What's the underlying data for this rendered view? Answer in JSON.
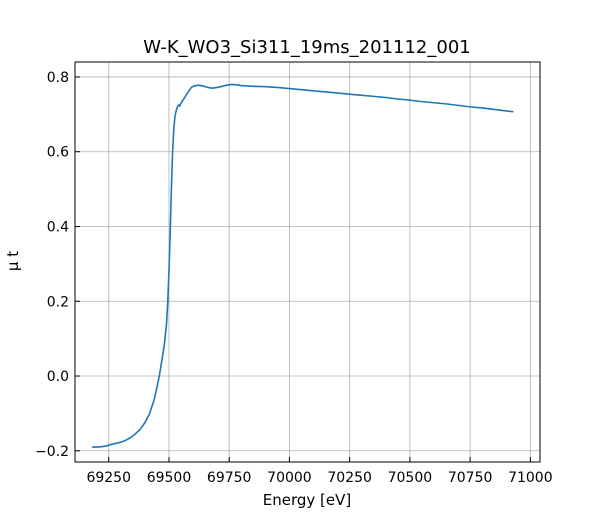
{
  "chart_data": {
    "type": "line",
    "title": "W-K_WO3_Si311_19ms_201112_001",
    "xlabel": "Energy [eV]",
    "ylabel": "μ t",
    "xlim": [
      69110,
      71040
    ],
    "ylim": [
      -0.23,
      0.84
    ],
    "xticks": [
      69250,
      69500,
      69750,
      70000,
      70250,
      70500,
      70750,
      71000
    ],
    "yticks": [
      -0.2,
      0.0,
      0.2,
      0.4,
      0.6,
      0.8
    ],
    "xtick_labels": [
      "69250",
      "69500",
      "69750",
      "70000",
      "70250",
      "70500",
      "70750",
      "71000"
    ],
    "ytick_labels": [
      "−0.2",
      "0.0",
      "0.2",
      "0.4",
      "0.6",
      "0.8"
    ],
    "grid": true,
    "series": [
      {
        "color": "#1f77b4",
        "x": [
          69180,
          69200,
          69220,
          69240,
          69260,
          69280,
          69300,
          69320,
          69340,
          69360,
          69380,
          69400,
          69420,
          69440,
          69460,
          69470,
          69480,
          69490,
          69495,
          69500,
          69505,
          69510,
          69515,
          69520,
          69525,
          69530,
          69535,
          69540,
          69545,
          69550,
          69560,
          69570,
          69580,
          69590,
          69600,
          69620,
          69640,
          69660,
          69680,
          69700,
          69720,
          69740,
          69760,
          69780,
          69800,
          69850,
          69900,
          69950,
          70000,
          70050,
          70100,
          70150,
          70200,
          70250,
          70300,
          70350,
          70400,
          70450,
          70500,
          70550,
          70600,
          70650,
          70700,
          70750,
          70800,
          70850,
          70900,
          70930
        ],
        "y": [
          -0.19,
          -0.19,
          -0.189,
          -0.187,
          -0.183,
          -0.18,
          -0.177,
          -0.172,
          -0.165,
          -0.155,
          -0.143,
          -0.125,
          -0.1,
          -0.06,
          -0.0,
          0.04,
          0.08,
          0.14,
          0.2,
          0.28,
          0.38,
          0.5,
          0.6,
          0.66,
          0.695,
          0.71,
          0.72,
          0.725,
          0.722,
          0.73,
          0.74,
          0.75,
          0.76,
          0.77,
          0.775,
          0.778,
          0.776,
          0.772,
          0.77,
          0.772,
          0.775,
          0.778,
          0.78,
          0.779,
          0.777,
          0.775,
          0.774,
          0.772,
          0.769,
          0.766,
          0.763,
          0.76,
          0.757,
          0.754,
          0.751,
          0.748,
          0.745,
          0.741,
          0.738,
          0.734,
          0.731,
          0.728,
          0.724,
          0.72,
          0.717,
          0.713,
          0.709,
          0.707
        ]
      }
    ]
  }
}
